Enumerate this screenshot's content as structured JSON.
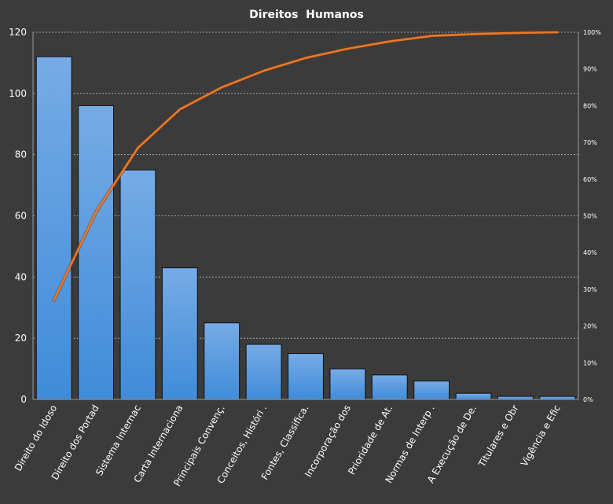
{
  "chart_data": {
    "type": "bar",
    "title": "Direitos  Humanos",
    "categories": [
      "Direito do Idoso",
      "Direito dos Portad",
      "Sistema Internac",
      "Carta Internaciona",
      "Principais Convenç.",
      "Conceitos, Históri .",
      "Fontes, Classifica.",
      "Incorporação dos",
      "Prioridade de At.",
      "Normas de Interp .",
      "A Execução de De.",
      "Titulares e Obr",
      "Vigência e Efic"
    ],
    "series": [
      {
        "values": [
          112,
          96,
          75,
          43,
          25,
          18,
          15,
          10,
          8,
          6,
          2,
          1,
          1
        ]
      },
      {
        "type": "line",
        "axis": "secondary",
        "values": [
          27,
          51,
          68.5,
          79,
          85,
          89.5,
          93,
          95.5,
          97.5,
          99,
          99.5,
          99.8,
          100
        ]
      }
    ],
    "ylim": [
      0,
      120
    ],
    "y_ticks": [
      "0",
      "20",
      "40",
      "60",
      "80",
      "100",
      "120"
    ],
    "y2lim": [
      0,
      100
    ],
    "y2_ticks": [
      "0%",
      "10%",
      "20%",
      "30%",
      "40%",
      "50%",
      "60%",
      "70%",
      "80%",
      "90%",
      "100%"
    ],
    "grid": true,
    "colors": {
      "background": "#3b3b3b",
      "bar_top": "#77abe6",
      "bar_bottom": "#3f8cd9",
      "line": "#e8792a",
      "text": "#ffffff"
    }
  }
}
